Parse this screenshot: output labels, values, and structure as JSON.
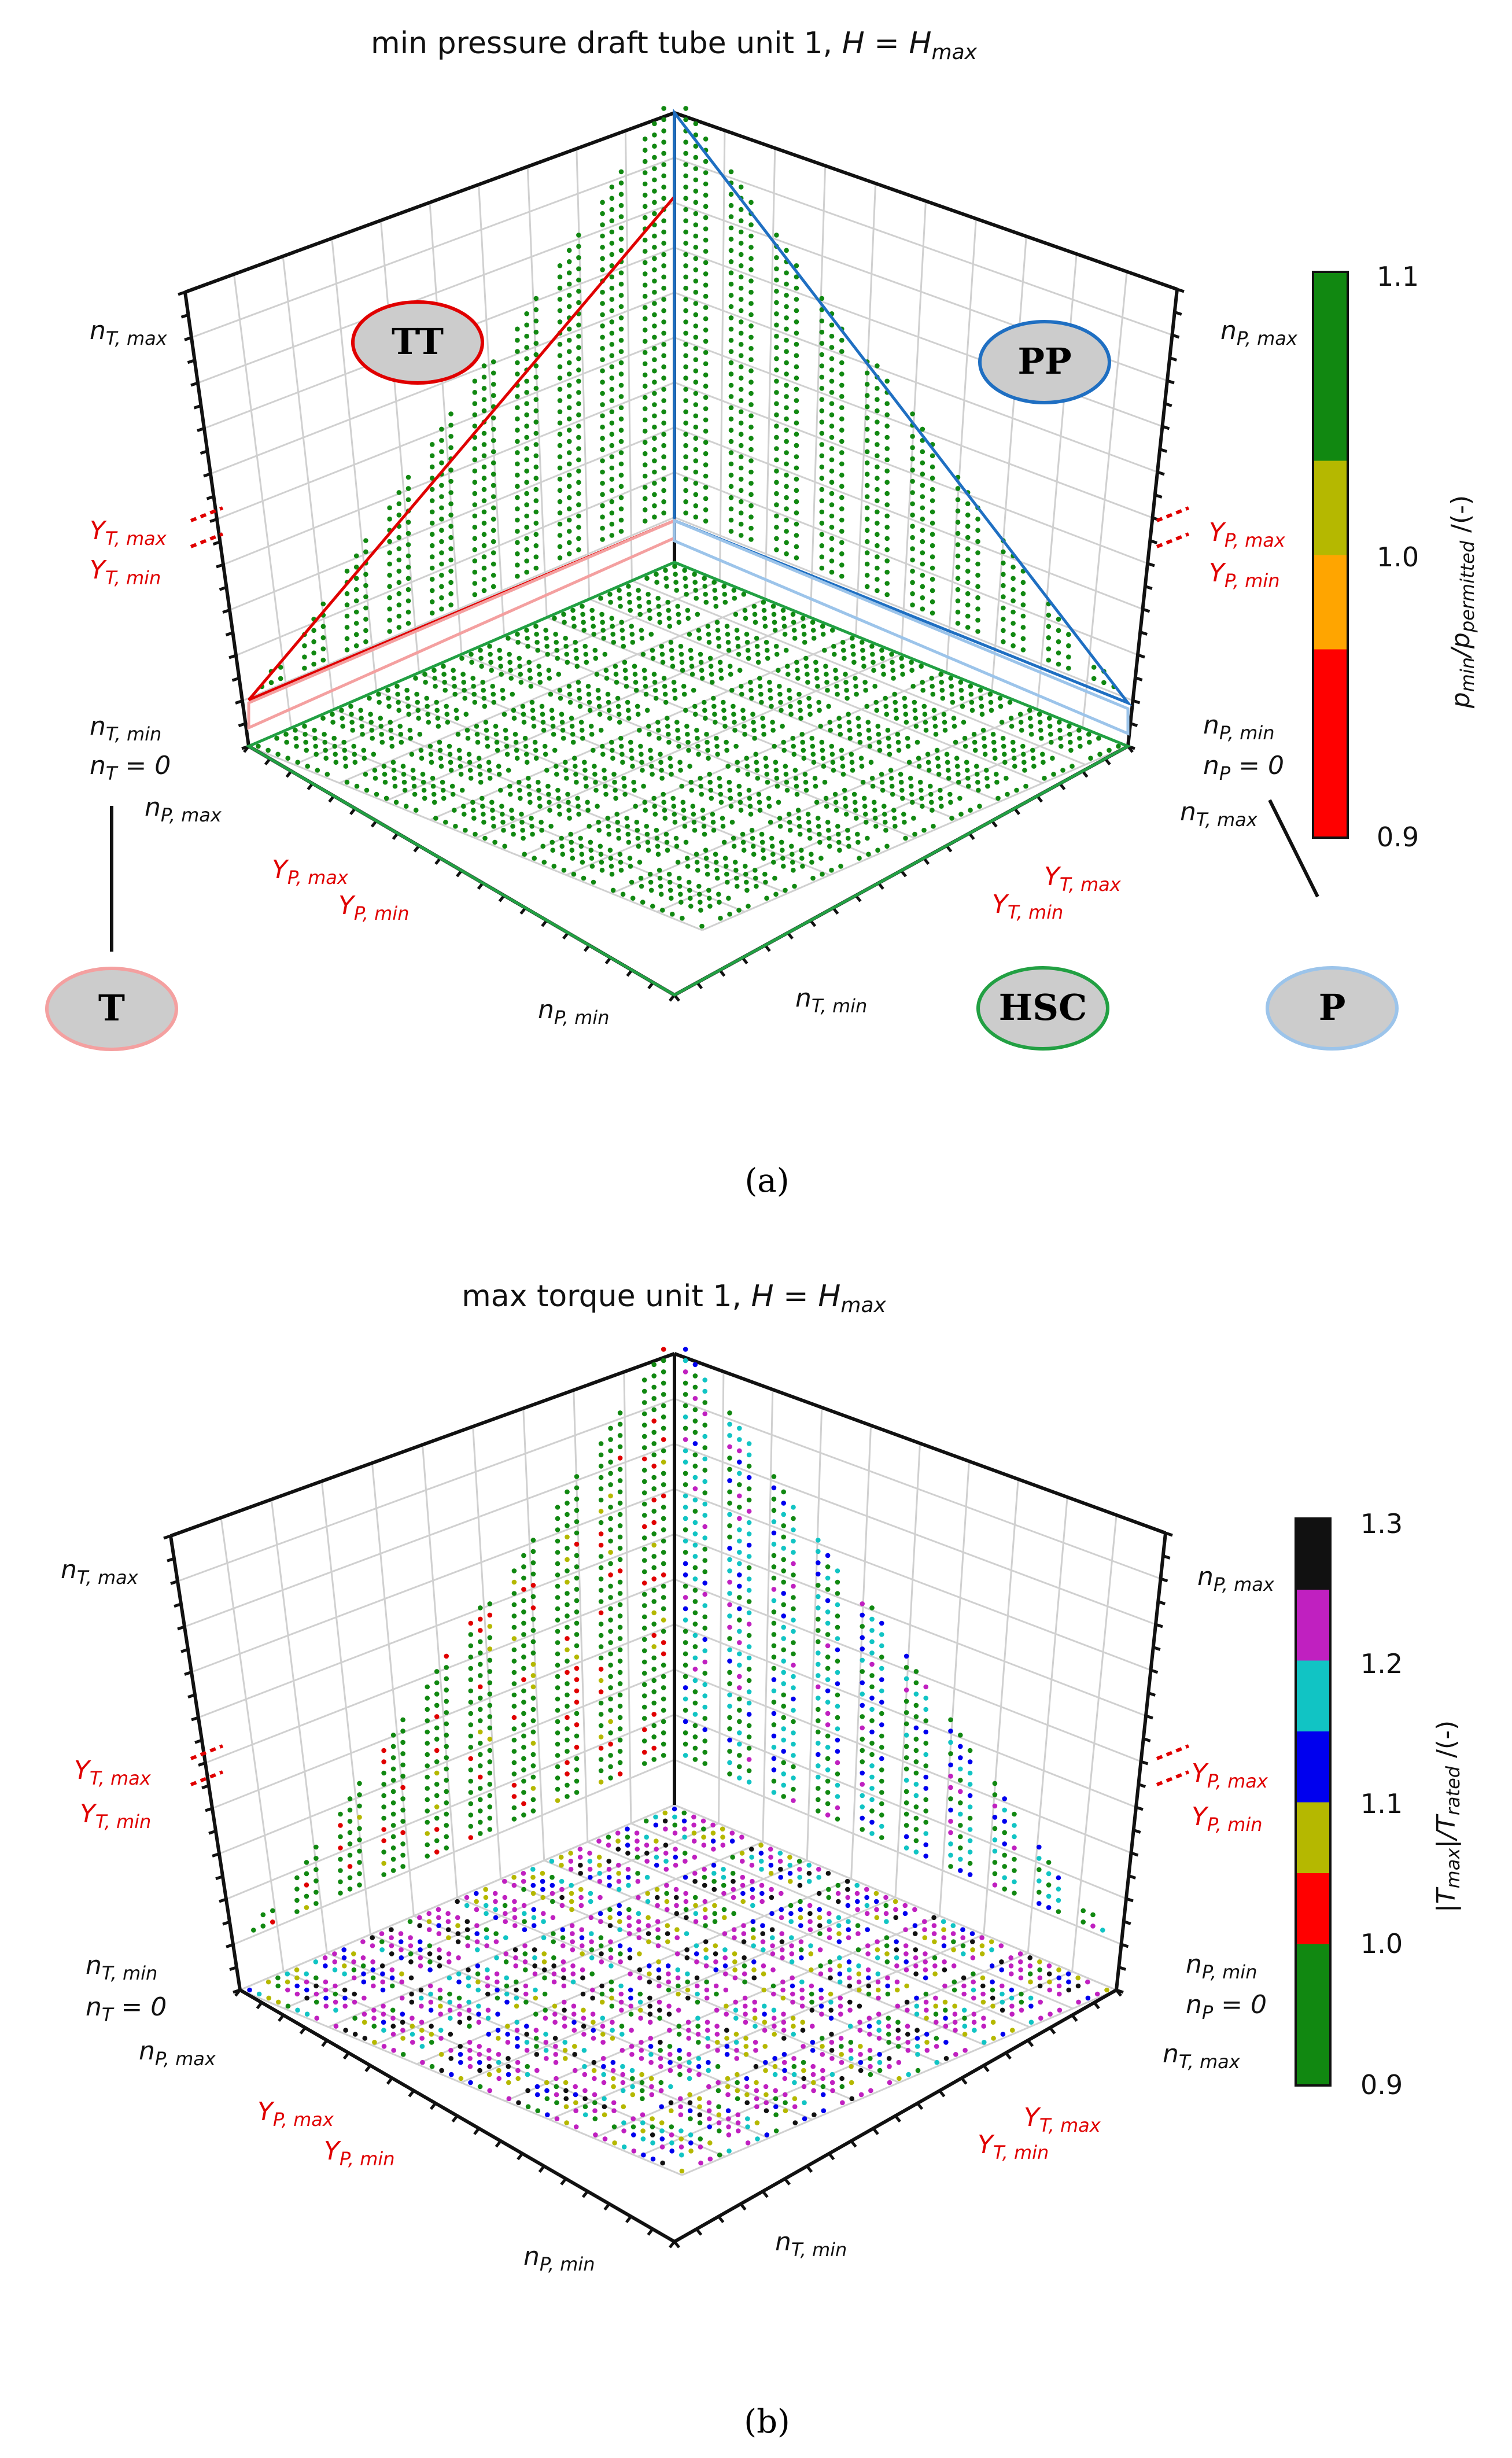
{
  "chart_data": [
    {
      "type": "scatter",
      "panel": "(a)",
      "title": "min pressure draft tube unit 1, H = H_max",
      "colorbar": {
        "label": "p_min/p_permitted /(-)",
        "ticks": [
          "0.9",
          "1.0",
          "1.1"
        ],
        "range": [
          0.9,
          1.1
        ],
        "bands": [
          "#ff0000",
          "#ff0000",
          "#ffa500",
          "#b5b800",
          "#118811",
          "#118811"
        ]
      },
      "regions": [
        "TT",
        "PP",
        "T",
        "HSC",
        "P"
      ],
      "region_colors": {
        "TT": "#e00000",
        "PP": "#1f6fc2",
        "T": "#f4a0a0",
        "HSC": "#22a043",
        "P": "#9cc4ea"
      },
      "axes": {
        "left_wall": [
          "n_T,max",
          "Y_T,max",
          "Y_T,min",
          "n_T,min",
          "n_T = 0"
        ],
        "right_wall": [
          "n_P,max",
          "Y_P,max",
          "Y_P,min",
          "n_P,min",
          "n_P = 0"
        ],
        "floor_left": [
          "n_P,max",
          "Y_P,max",
          "Y_P,min",
          "n_P,min"
        ],
        "floor_right": [
          "n_T,max",
          "Y_T,max",
          "Y_T,min",
          "n_T,min"
        ]
      },
      "observation": "all operating points satisfy p_min/p_permitted >= 1.1"
    },
    {
      "type": "scatter",
      "panel": "(b)",
      "title": "max torque unit 1, H = H_max",
      "colorbar": {
        "label": "|T_max|/T_rated /(-)",
        "ticks": [
          "0.9",
          "1.0",
          "1.1",
          "1.2",
          "1.3"
        ],
        "range": [
          0.9,
          1.3
        ],
        "bands": [
          "#118811",
          "#118811",
          "#ff0000",
          "#b5b800",
          "#0000ee",
          "#11c4c4",
          "#c020c0",
          "#111111"
        ]
      },
      "axes": {
        "left_wall": [
          "n_T,max",
          "Y_T,max",
          "Y_T,min",
          "n_T,min",
          "n_T = 0"
        ],
        "right_wall": [
          "n_P,max",
          "Y_P,max",
          "Y_P,min",
          "n_P,min",
          "n_P = 0"
        ],
        "floor_left": [
          "n_P,max",
          "Y_P,max",
          "Y_P,min",
          "n_P,min"
        ],
        "floor_right": [
          "n_T,max",
          "Y_T,max",
          "Y_T,min",
          "n_T,min"
        ]
      }
    }
  ],
  "captions": {
    "a": "(a)",
    "b": "(b)"
  }
}
